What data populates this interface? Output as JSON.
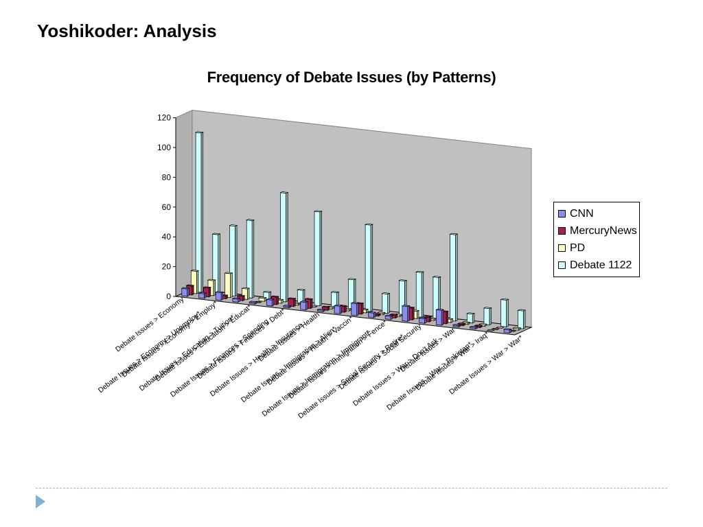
{
  "slide": {
    "title": "Yoshikoder: Analysis"
  },
  "colors": {
    "CNN": "#8d8df0",
    "MercuryNews": "#a3224f",
    "PD": "#ffffc4",
    "Debate 1122": "#ccfefe",
    "wall": "#c0c0c0",
    "floor": "#b4b4b4"
  },
  "chart_data": {
    "type": "bar",
    "title": "Frequency of Debate Issues (by Patterns)",
    "xlabel": "",
    "ylabel": "",
    "ylim": [
      0,
      120
    ],
    "yticks": [
      0,
      20,
      40,
      60,
      80,
      100,
      120
    ],
    "legend_position": "right",
    "categories": [
      "Debate Issues > Economy",
      "Debate Issues > Economy > Employ*",
      "Debate Issues > Economy > Unemploy*",
      "Debate Issues > Education > Educat*",
      "Debate Issues > Education > Tuition*",
      "Debate Issues > Finances > Debt*",
      "Debate Issues > Finances > Spending",
      "Debate Issues > Health",
      "Debate Issues > Health > Insurance",
      "Debate Issues > Health > Vaccin*",
      "Debate Issues > Immigration > Alien*",
      "Debate Issues > Immigration > Fence*",
      "Debate Issues > Immigration > Immigrant*",
      "Debate Issues > Social Security",
      "Debate Issues > Social Security > Retire*",
      "Debate Issues > War",
      "Debate Issues > War > Don't Ask",
      "Debate Issues > War > Iraq*",
      "Debate Issues > War > Pakistan*",
      "Debate Issues > War > War*"
    ],
    "x_tick_labels": [
      "Debate Issues > Economy",
      "Debate Issues > Economy > Employ*",
      "Debate Issues > Education > Educat*",
      "Debate Issues > Finances > Debt*",
      "Debate Issues > Health",
      "Debate Issues > Health > Vaccin*",
      "Debate Issues > Immigration > Fence*",
      "Debate Issues > Social Security",
      "Debate Issues > War",
      "Debate Issues > War > Iraq*",
      "Debate Issues > War > War*",
      "Debate Issues > Economy > Unemploy*",
      "Debate Issues > Education > Tuition*",
      "Debate Issues > Finances > Spending",
      "Debate Issues > Health > Insurance",
      "Debate Issues > Immigration > Alien*",
      "Debate Issues > Immigration > Immigrant*",
      "Debate Issues > Social Security > Retire*",
      "Debate Issues > War > Don't Ask",
      "Debate Issues > War > Pakistan*"
    ],
    "series": [
      {
        "name": "CNN",
        "values": [
          5,
          3,
          5,
          2,
          1,
          4,
          1,
          5,
          1,
          5,
          8,
          3,
          2,
          10,
          3,
          10,
          1,
          1,
          0,
          2
        ]
      },
      {
        "name": "MercuryNews",
        "values": [
          6,
          6,
          2,
          3,
          0,
          5,
          5,
          6,
          2,
          4,
          7,
          1,
          2,
          8,
          3,
          8,
          1,
          1,
          0,
          0
        ]
      },
      {
        "name": "PD",
        "values": [
          15,
          10,
          16,
          7,
          2,
          2,
          1,
          0,
          1,
          1,
          2,
          1,
          1,
          5,
          1,
          2,
          1,
          1,
          0,
          1
        ]
      },
      {
        "name": "Debate 1122",
        "values": [
          107,
          40,
          47,
          52,
          5,
          73,
          9,
          63,
          10,
          20,
          58,
          13,
          23,
          30,
          28,
          58,
          6,
          11,
          18,
          12
        ]
      }
    ]
  }
}
